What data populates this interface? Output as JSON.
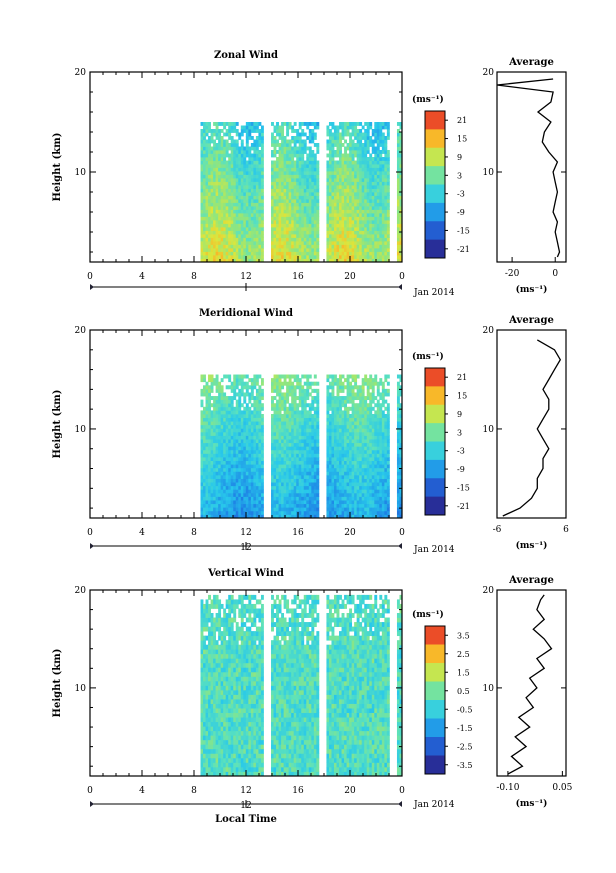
{
  "chart_data": [
    {
      "type": "heatmap",
      "title": "Zonal Wind",
      "ylabel": "Height (km)",
      "xlabel": "",
      "units": "(ms⁻¹)",
      "x_ticks": [
        "0",
        "4",
        "8",
        "12",
        "16",
        "20",
        "0"
      ],
      "y_ticks": [
        "10",
        "20"
      ],
      "xlim": [
        0,
        24
      ],
      "ylim": [
        1,
        20
      ],
      "date_label": "Jan 2014",
      "date_tick": "12",
      "colorbar_ticks": [
        "21",
        "15",
        "9",
        "3",
        "-3",
        "-9",
        "-15",
        "-21"
      ],
      "colorbar_range": [
        -24,
        24
      ],
      "data_coverage_start_hour": 8.5,
      "data_coverage_top_km": 15,
      "typical_value_range": [
        -6,
        15
      ],
      "gap_hours": [
        13.5,
        17.8,
        23.2
      ],
      "average_profile": {
        "title": "Average",
        "xlabel": "(ms⁻¹)",
        "x_ticks": [
          "-20",
          "0"
        ],
        "y_ticks": [
          "10",
          "20"
        ],
        "xlim": [
          -27,
          5
        ],
        "heights_km": [
          1.5,
          2,
          3,
          4,
          5,
          6,
          7,
          8,
          9,
          10,
          11,
          12,
          13,
          14,
          15,
          16,
          17,
          18,
          18.7,
          19.3
        ],
        "values": [
          1,
          2,
          1,
          0,
          1,
          -1,
          0,
          1,
          0,
          -1,
          1,
          -3,
          -6,
          -5,
          -2,
          -8,
          -2,
          -1,
          -27,
          -1
        ]
      }
    },
    {
      "type": "heatmap",
      "title": "Meridional Wind",
      "ylabel": "Height (km)",
      "xlabel": "",
      "units": "(ms⁻¹)",
      "x_ticks": [
        "0",
        "4",
        "8",
        "12",
        "16",
        "20",
        "0"
      ],
      "y_ticks": [
        "10",
        "20"
      ],
      "xlim": [
        0,
        24
      ],
      "ylim": [
        1,
        20
      ],
      "date_label": "Jan 2014",
      "date_tick": "12",
      "colorbar_ticks": [
        "21",
        "15",
        "9",
        "3",
        "-3",
        "-9",
        "-15",
        "-21"
      ],
      "colorbar_range": [
        -24,
        24
      ],
      "data_coverage_start_hour": 8.5,
      "data_coverage_top_km": 15.5,
      "typical_value_range": [
        -12,
        6
      ],
      "gap_hours": [
        13.5,
        17.8,
        23.2
      ],
      "average_profile": {
        "title": "Average",
        "xlabel": "(ms⁻¹)",
        "x_ticks": [
          "-6",
          "6"
        ],
        "y_ticks": [
          "10",
          "20"
        ],
        "xlim": [
          -6,
          6
        ],
        "heights_km": [
          1.2,
          2,
          3,
          4,
          5,
          6,
          7,
          8,
          9,
          10,
          11,
          12,
          13,
          14,
          15,
          16,
          17,
          18,
          19
        ],
        "values": [
          -5,
          -2,
          0,
          1,
          1,
          2,
          2,
          3,
          2,
          1,
          2,
          3,
          3,
          2,
          3,
          4,
          5,
          4,
          1
        ]
      }
    },
    {
      "type": "heatmap",
      "title": "Vertical Wind",
      "ylabel": "Height (km)",
      "xlabel": "Local Time",
      "units": "(ms⁻¹)",
      "x_ticks": [
        "0",
        "4",
        "8",
        "12",
        "16",
        "20",
        "0"
      ],
      "y_ticks": [
        "10",
        "20"
      ],
      "xlim": [
        0,
        24
      ],
      "ylim": [
        1,
        20
      ],
      "date_label": "Jan 2014",
      "date_tick": "12",
      "colorbar_ticks": [
        "3.5",
        "2.5",
        "1.5",
        "0.5",
        "-0.5",
        "-1.5",
        "-2.5",
        "-3.5"
      ],
      "colorbar_range": [
        -4,
        4
      ],
      "data_coverage_start_hour": 8.5,
      "data_coverage_top_km": 19.5,
      "typical_value_range": [
        -0.5,
        0.5
      ],
      "gap_hours": [
        13.5,
        17.8,
        23.2
      ],
      "average_profile": {
        "title": "Average",
        "xlabel": "(ms⁻¹)",
        "x_ticks": [
          "-0.10",
          "0.05"
        ],
        "y_ticks": [
          "10",
          "20"
        ],
        "xlim": [
          -0.13,
          0.06
        ],
        "heights_km": [
          1.2,
          2,
          3,
          4,
          5,
          6,
          7,
          8,
          9,
          10,
          11,
          12,
          13,
          14,
          15,
          16,
          17,
          18,
          19,
          19.5
        ],
        "values": [
          -0.1,
          -0.06,
          -0.09,
          -0.05,
          -0.08,
          -0.04,
          -0.07,
          -0.03,
          -0.05,
          -0.02,
          -0.04,
          0,
          -0.02,
          0.02,
          0,
          -0.03,
          0,
          -0.02,
          -0.01,
          0
        ]
      }
    }
  ]
}
